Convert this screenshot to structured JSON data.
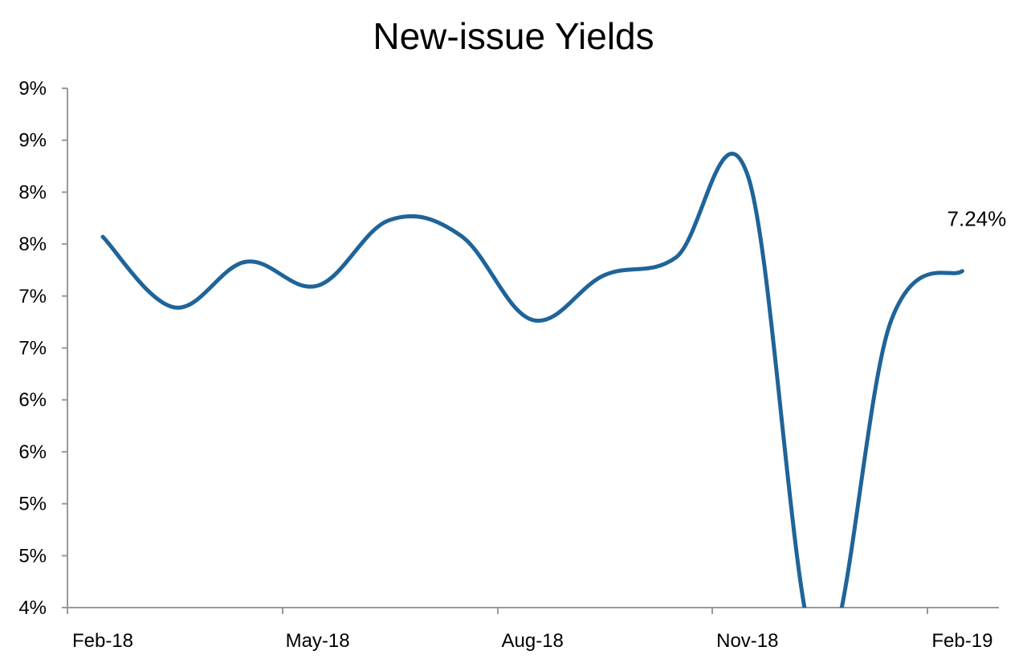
{
  "chart_data": {
    "type": "line",
    "title": "New-issue Yields",
    "xlabel": "",
    "ylabel": "",
    "x": [
      "Feb-18",
      "Mar-18",
      "Apr-18",
      "May-18",
      "Jun-18",
      "Jul-18",
      "Aug-18",
      "Sep-18",
      "Oct-18",
      "Nov-18",
      "Dec-18",
      "Jan-19",
      "Feb-19"
    ],
    "x_tick_labels": [
      "Feb-18",
      "May-18",
      "Aug-18",
      "Nov-18",
      "Feb-19"
    ],
    "series": [
      {
        "values": [
          7.57,
          6.89,
          7.33,
          7.1,
          7.73,
          7.58,
          6.77,
          7.2,
          7.37,
          8.17,
          3.5,
          6.75,
          7.24
        ]
      }
    ],
    "y_ticks": [
      4.0,
      4.5,
      5.0,
      5.5,
      6.0,
      6.5,
      7.0,
      7.5,
      8.0,
      8.5,
      9.0
    ],
    "y_tick_labels": [
      "4%",
      "5%",
      "5%",
      "6%",
      "6%",
      "7%",
      "7%",
      "8%",
      "8%",
      "9%",
      "9%"
    ],
    "ylim": [
      4.0,
      9.0
    ],
    "annotations": [
      {
        "text": "7.24%",
        "x": "Feb-19",
        "y": 7.24
      }
    ],
    "grid": false,
    "colors": {
      "line": "#1f6499",
      "axis": "#999999",
      "text": "#000000"
    }
  }
}
